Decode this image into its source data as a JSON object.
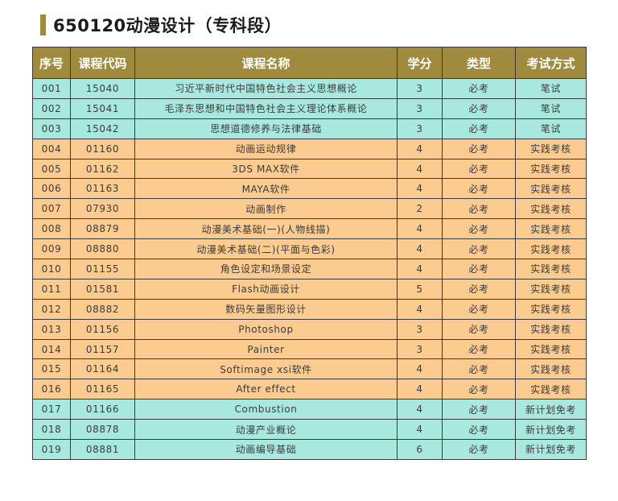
{
  "page_title": "650120动漫设计（专科段）",
  "colors": {
    "header_bg": "#a08a3e",
    "teal_row": "#a9e8df",
    "orange_row": "#fbcb90"
  },
  "table": {
    "headers": [
      "序号",
      "课程代码",
      "课程名称",
      "学分",
      "类型",
      "考试方式"
    ],
    "rows": [
      {
        "style": "teal",
        "cells": [
          "001",
          "15040",
          "习近平新时代中国特色社会主义思想概论",
          "3",
          "必考",
          "笔试"
        ]
      },
      {
        "style": "teal",
        "cells": [
          "002",
          "15041",
          "毛泽东思想和中国特色社会主义理论体系概论",
          "3",
          "必考",
          "笔试"
        ]
      },
      {
        "style": "teal",
        "cells": [
          "003",
          "15042",
          "思想道德修养与法律基础",
          "3",
          "必考",
          "笔试"
        ]
      },
      {
        "style": "orange",
        "cells": [
          "004",
          "01160",
          "动画运动规律",
          "4",
          "必考",
          "实践考核"
        ]
      },
      {
        "style": "orange",
        "cells": [
          "005",
          "01162",
          "3DS MAX软件",
          "4",
          "必考",
          "实践考核"
        ]
      },
      {
        "style": "orange",
        "cells": [
          "006",
          "01163",
          "MAYA软件",
          "4",
          "必考",
          "实践考核"
        ]
      },
      {
        "style": "orange",
        "cells": [
          "007",
          "07930",
          "动画制作",
          "2",
          "必考",
          "实践考核"
        ]
      },
      {
        "style": "orange",
        "cells": [
          "008",
          "08879",
          "动漫美术基础(一)(人物线描)",
          "4",
          "必考",
          "实践考核"
        ]
      },
      {
        "style": "orange",
        "cells": [
          "009",
          "08880",
          "动漫美术基础(二)(平面与色彩)",
          "4",
          "必考",
          "实践考核"
        ]
      },
      {
        "style": "orange",
        "cells": [
          "010",
          "01155",
          "角色设定和场景设定",
          "4",
          "必考",
          "实践考核"
        ]
      },
      {
        "style": "orange",
        "cells": [
          "011",
          "01581",
          "Flash动画设计",
          "5",
          "必考",
          "实践考核"
        ]
      },
      {
        "style": "orange",
        "cells": [
          "012",
          "08882",
          "数码矢量图形设计",
          "4",
          "必考",
          "实践考核"
        ]
      },
      {
        "style": "orange",
        "cells": [
          "013",
          "01156",
          "Photoshop",
          "3",
          "必考",
          "实践考核"
        ]
      },
      {
        "style": "orange",
        "cells": [
          "014",
          "01157",
          "Painter",
          "3",
          "必考",
          "实践考核"
        ]
      },
      {
        "style": "orange",
        "cells": [
          "015",
          "01164",
          "Softimage xsi软件",
          "4",
          "必考",
          "实践考核"
        ]
      },
      {
        "style": "orange",
        "cells": [
          "016",
          "01165",
          "After effect",
          "4",
          "必考",
          "实践考核"
        ]
      },
      {
        "style": "teal",
        "cells": [
          "017",
          "01166",
          "Combustion",
          "4",
          "必考",
          "新计划免考"
        ]
      },
      {
        "style": "teal",
        "cells": [
          "018",
          "08878",
          "动漫产业概论",
          "4",
          "必考",
          "新计划免考"
        ]
      },
      {
        "style": "teal",
        "cells": [
          "019",
          "08881",
          "动画编导基础",
          "6",
          "必考",
          "新计划免考"
        ]
      }
    ]
  }
}
